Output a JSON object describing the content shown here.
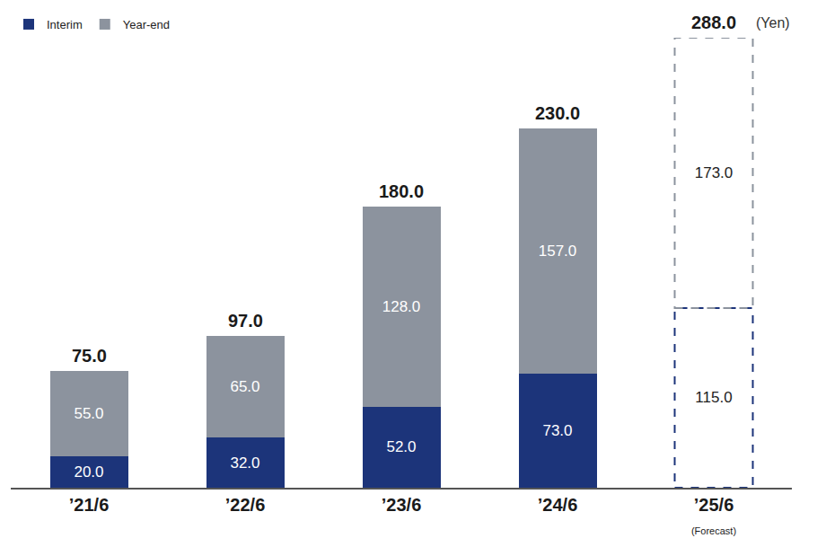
{
  "chart_data": {
    "type": "bar",
    "stacked": true,
    "categories": [
      "’21/6",
      "’22/6",
      "’23/6",
      "’24/6",
      "’25/6"
    ],
    "category_notes": [
      null,
      null,
      null,
      null,
      "(Forecast)"
    ],
    "series": [
      {
        "name": "Interim",
        "color": "#1c347a",
        "values": [
          20,
          32,
          52,
          73,
          115
        ],
        "value_labels": [
          "20.0",
          "32.0",
          "52.0",
          "73.0",
          "115.0"
        ]
      },
      {
        "name": "Year-end",
        "color": "#8c939e",
        "values": [
          55,
          65,
          128,
          157,
          173
        ],
        "value_labels": [
          "55.0",
          "65.0",
          "128.0",
          "157.0",
          "173.0"
        ]
      }
    ],
    "totals": {
      "values": [
        75,
        97,
        180,
        230,
        288
      ],
      "value_labels": [
        "75.0",
        "97.0",
        "180.0",
        "230.0",
        "288.0"
      ]
    },
    "annotations": [
      "(Yen)"
    ],
    "ylim": [
      0,
      288
    ],
    "yticks": [
      0,
      288
    ],
    "grid": false,
    "legend": "top left",
    "data_labels": true,
    "tick_labels": "x"
  }
}
